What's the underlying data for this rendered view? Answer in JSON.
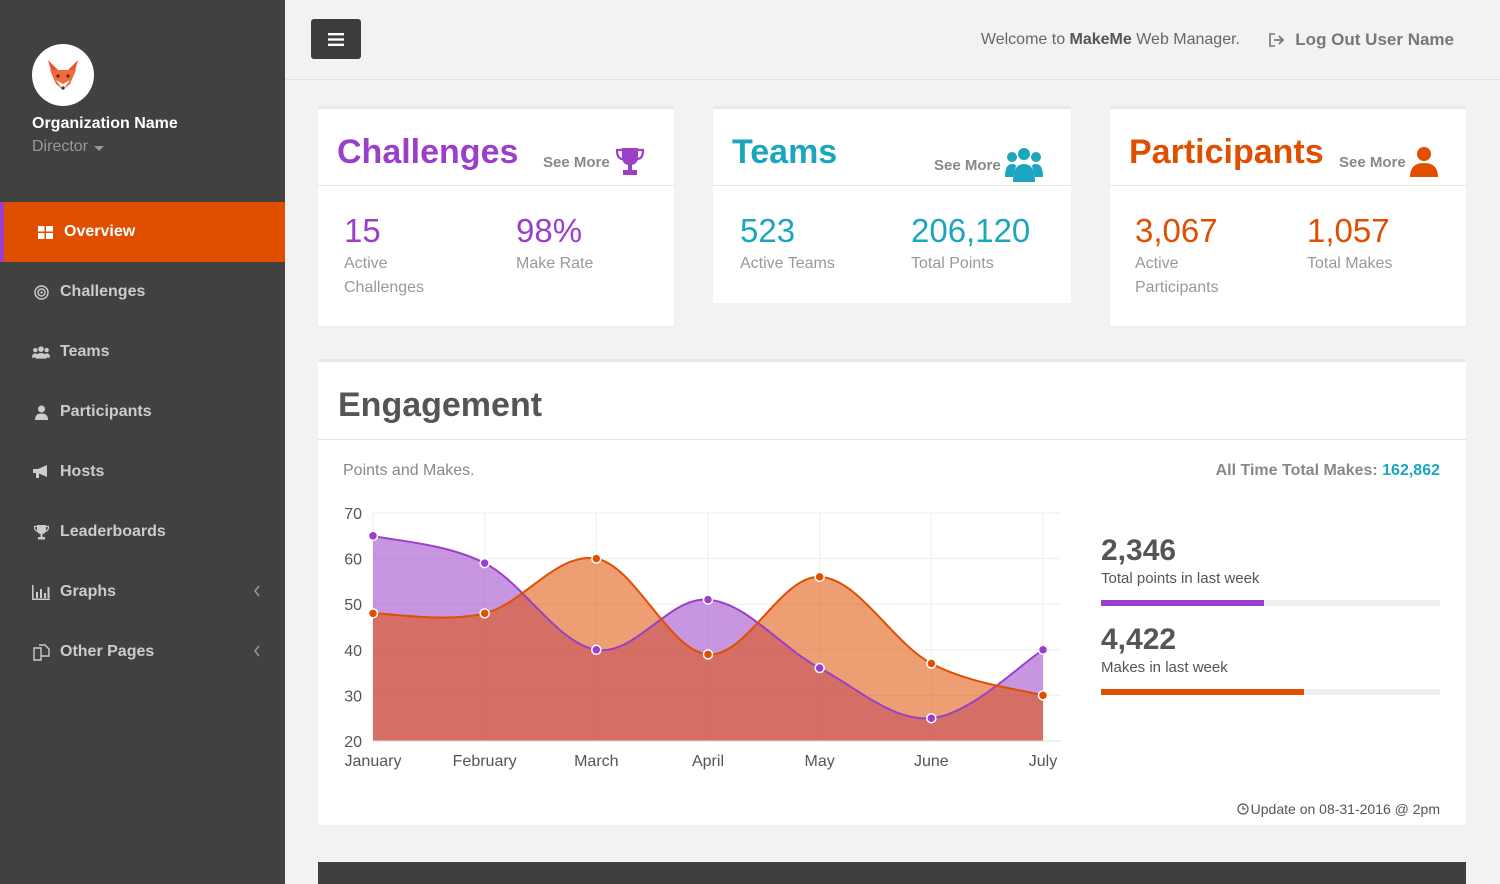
{
  "sidebar": {
    "org_name": "Organization Name",
    "role": "Director",
    "items": [
      {
        "label": "Overview",
        "icon": "grid-icon"
      },
      {
        "label": "Challenges",
        "icon": "target-icon"
      },
      {
        "label": "Teams",
        "icon": "users-icon"
      },
      {
        "label": "Participants",
        "icon": "user-icon"
      },
      {
        "label": "Hosts",
        "icon": "bullhorn-icon"
      },
      {
        "label": "Leaderboards",
        "icon": "trophy-icon"
      },
      {
        "label": "Graphs",
        "icon": "bar-chart-icon"
      },
      {
        "label": "Other Pages",
        "icon": "copy-icon"
      }
    ]
  },
  "header": {
    "welcome_prefix": "Welcome to ",
    "welcome_brand": "MakeMe",
    "welcome_suffix": " Web Manager.",
    "logout": "Log Out User Name"
  },
  "cards": {
    "challenges": {
      "title": "Challenges",
      "see_more": "See More",
      "stat1_value": "15",
      "stat1_label": "Active Challenges",
      "stat2_value": "98%",
      "stat2_label": "Make Rate"
    },
    "teams": {
      "title": "Teams",
      "see_more": "See More",
      "stat1_value": "523",
      "stat1_label": "Active Teams",
      "stat2_value": "206,120",
      "stat2_label": "Total Points"
    },
    "participants": {
      "title": "Participants",
      "see_more": "See More",
      "stat1_value": "3,067",
      "stat1_label": "Active Participants",
      "stat2_value": "1,057",
      "stat2_label": "Total Makes"
    }
  },
  "engagement": {
    "title": "Engagement",
    "subtitle": "Points and Makes.",
    "total_label": "All Time Total Makes: ",
    "total_value": "162,862",
    "points_value": "2,346",
    "points_label": "Total points in last week",
    "points_progress": 0.48,
    "makes_value": "4,422",
    "makes_label": "Makes in last week",
    "makes_progress": 0.6,
    "update": "Update on 08-31-2016 @ 2pm"
  },
  "colors": {
    "purple": "#9b3fc9",
    "orange": "#e04e00",
    "teal": "#1aa6bf"
  },
  "chart_data": {
    "type": "area",
    "categories": [
      "January",
      "February",
      "March",
      "April",
      "May",
      "June",
      "July"
    ],
    "series": [
      {
        "name": "Points",
        "values": [
          65,
          59,
          40,
          51,
          36,
          25,
          40
        ],
        "color": "#9b3fc9"
      },
      {
        "name": "Makes",
        "values": [
          48,
          48,
          60,
          39,
          56,
          37,
          30
        ],
        "color": "#e04e00"
      }
    ],
    "yticks": [
      20,
      30,
      40,
      50,
      60,
      70
    ],
    "ylim": [
      20,
      70
    ]
  }
}
